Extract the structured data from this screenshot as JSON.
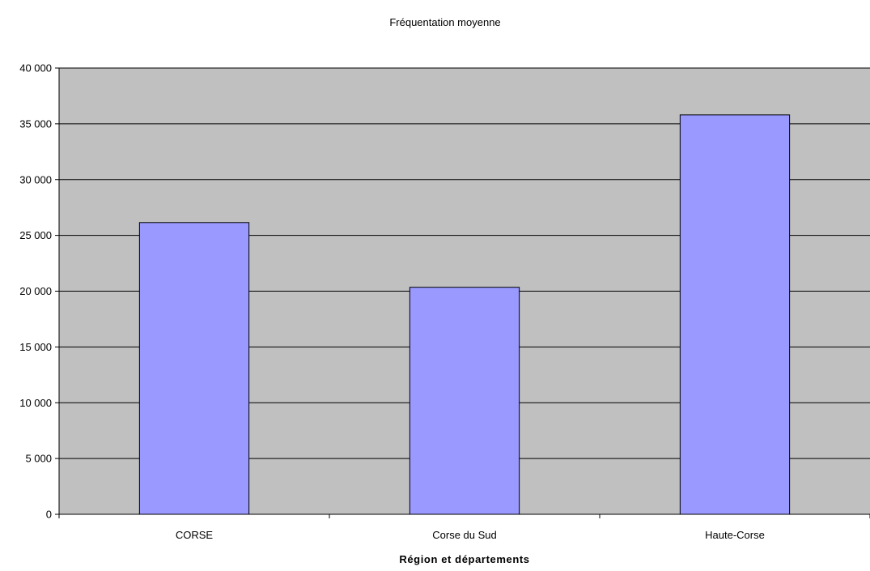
{
  "chart_data": {
    "type": "bar",
    "title": "Fréquentation moyenne",
    "xlabel": "Région et départements",
    "ylabel": "",
    "categories": [
      "CORSE",
      "Corse du Sud",
      "Haute-Corse"
    ],
    "series": [
      {
        "values": [
          26150,
          20350,
          35800
        ]
      }
    ],
    "ylim": [
      0,
      40000
    ],
    "yticks": [
      0,
      5000,
      10000,
      15000,
      20000,
      25000,
      30000,
      35000,
      40000
    ],
    "ytick_labels": [
      "0",
      "5 000",
      "10 000",
      "15 000",
      "20 000",
      "25 000",
      "30 000",
      "35 000",
      "40 000"
    ],
    "grid": true,
    "legend": "none",
    "colors": {
      "plot_background": "#c0c0c0",
      "bar_fill": "#9999ff",
      "bar_stroke": "#000000",
      "gridline": "#000000"
    }
  }
}
